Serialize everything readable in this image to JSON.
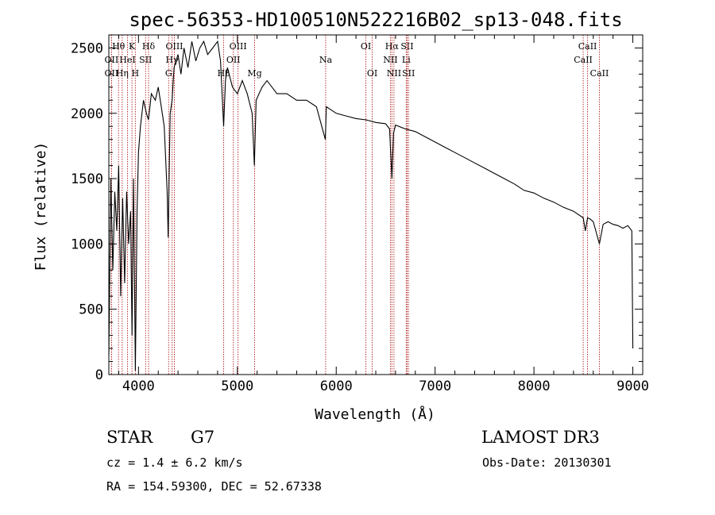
{
  "chart_data": {
    "type": "line",
    "title": "spec-56353-HD100510N522216B02_sp13-048.fits",
    "xlabel": "Wavelength (Å)",
    "ylabel": "Flux (relative)",
    "xlim": [
      3700,
      9100
    ],
    "ylim": [
      0,
      2600
    ],
    "xticks": [
      4000,
      5000,
      6000,
      7000,
      8000,
      9000
    ],
    "yticks": [
      0,
      500,
      1000,
      1500,
      2000,
      2500
    ],
    "series": [
      {
        "name": "flux",
        "x": [
          3700,
          3720,
          3740,
          3760,
          3780,
          3800,
          3820,
          3840,
          3860,
          3880,
          3900,
          3920,
          3935,
          3950,
          3968,
          3985,
          4000,
          4020,
          4050,
          4080,
          4101,
          4130,
          4170,
          4200,
          4230,
          4260,
          4290,
          4300,
          4320,
          4340,
          4360,
          4400,
          4430,
          4460,
          4500,
          4540,
          4580,
          4620,
          4660,
          4700,
          4750,
          4800,
          4830,
          4861,
          4880,
          4900,
          4950,
          5000,
          5050,
          5100,
          5150,
          5172,
          5190,
          5250,
          5300,
          5400,
          5500,
          5600,
          5700,
          5800,
          5890,
          5900,
          6000,
          6100,
          6200,
          6300,
          6400,
          6500,
          6540,
          6563,
          6580,
          6600,
          6700,
          6800,
          6900,
          7000,
          7100,
          7200,
          7300,
          7400,
          7500,
          7600,
          7700,
          7800,
          7900,
          8000,
          8100,
          8200,
          8300,
          8400,
          8498,
          8520,
          8542,
          8570,
          8600,
          8662,
          8700,
          8750,
          8800,
          8850,
          8900,
          8950,
          8990,
          9000
        ],
        "values": [
          150,
          1500,
          800,
          1400,
          1100,
          1600,
          600,
          1350,
          700,
          1400,
          1000,
          1250,
          300,
          1500,
          30,
          1250,
          1700,
          1900,
          2100,
          2000,
          1950,
          2150,
          2100,
          2200,
          2050,
          1900,
          1400,
          1050,
          2000,
          2100,
          2350,
          2450,
          2300,
          2500,
          2350,
          2550,
          2400,
          2500,
          2550,
          2450,
          2500,
          2550,
          2400,
          1900,
          2250,
          2350,
          2200,
          2150,
          2250,
          2150,
          2000,
          1600,
          2100,
          2200,
          2250,
          2150,
          2150,
          2100,
          2100,
          2050,
          1800,
          2050,
          2000,
          1980,
          1960,
          1950,
          1930,
          1920,
          1880,
          1500,
          1850,
          1910,
          1880,
          1860,
          1820,
          1780,
          1740,
          1700,
          1660,
          1620,
          1580,
          1540,
          1500,
          1460,
          1410,
          1390,
          1350,
          1320,
          1280,
          1250,
          1200,
          1100,
          1200,
          1190,
          1170,
          1000,
          1150,
          1170,
          1150,
          1140,
          1120,
          1140,
          1100,
          200
        ]
      }
    ],
    "line_markers": [
      {
        "label": "Hθ",
        "wl": 3798,
        "row": 0
      },
      {
        "label": "K",
        "wl": 3934,
        "row": 0
      },
      {
        "label": "Hδ",
        "wl": 4102,
        "row": 0
      },
      {
        "label": "OIII",
        "wl": 4363,
        "row": 0
      },
      {
        "label": "OIII",
        "wl": 5007,
        "row": 0
      },
      {
        "label": "Na",
        "wl": 5893,
        "row": 1
      },
      {
        "label": "OI",
        "wl": 6300,
        "row": 0
      },
      {
        "label": "OI",
        "wl": 6364,
        "row": 2
      },
      {
        "label": "Hα",
        "wl": 6563,
        "row": 0
      },
      {
        "label": "SII",
        "wl": 6717,
        "row": 0
      },
      {
        "label": "NII",
        "wl": 6548,
        "row": 1
      },
      {
        "label": "Li",
        "wl": 6708,
        "row": 1
      },
      {
        "label": "NII",
        "wl": 6584,
        "row": 2
      },
      {
        "label": "SII",
        "wl": 6731,
        "row": 2
      },
      {
        "label": "CaII",
        "wl": 8542,
        "row": 0
      },
      {
        "label": "CaII",
        "wl": 8498,
        "row": 1
      },
      {
        "label": "CaII",
        "wl": 8662,
        "row": 2
      },
      {
        "label": "OII",
        "wl": 3727,
        "row": 1
      },
      {
        "label": "HeI",
        "wl": 3889,
        "row": 1
      },
      {
        "label": "SII",
        "wl": 4072,
        "row": 1
      },
      {
        "label": "Hγ",
        "wl": 4340,
        "row": 1
      },
      {
        "label": "OII",
        "wl": 4959,
        "row": 1
      },
      {
        "label": "OII",
        "wl": 3727,
        "row": 2
      },
      {
        "label": "Hη",
        "wl": 3835,
        "row": 2
      },
      {
        "label": "H",
        "wl": 3968,
        "row": 2
      },
      {
        "label": "G",
        "wl": 4305,
        "row": 2
      },
      {
        "label": "Hβ",
        "wl": 4861,
        "row": 2
      },
      {
        "label": "Mg",
        "wl": 5175,
        "row": 2
      }
    ]
  },
  "info": {
    "object_class": "STAR",
    "subclass": "G7",
    "survey": "LAMOST DR3",
    "cz": "cz = 1.4 ± 6.2 km/s",
    "obs_date": "Obs-Date: 20130301",
    "radec": "RA = 154.59300, DEC =  52.67338"
  },
  "colors": {
    "spectrum": "#000000",
    "marker": "#b22222",
    "axes": "#000000"
  }
}
